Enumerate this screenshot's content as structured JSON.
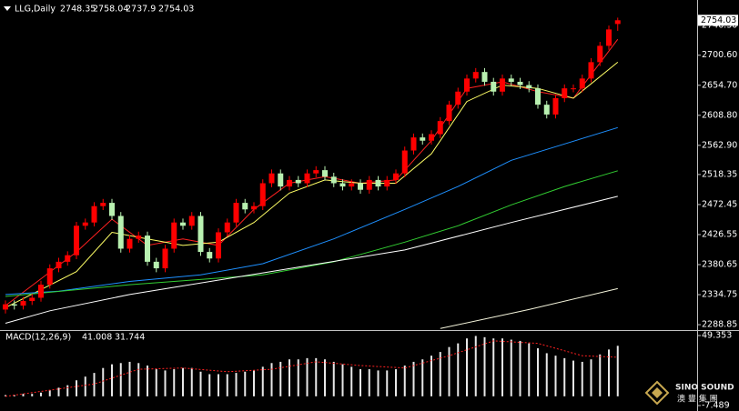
{
  "chart_data": [
    {
      "type": "candlestick",
      "symbol": "LLG,Daily",
      "up_color": "#ff0000",
      "down_color": "#b8f0b0",
      "open": [
        2312,
        2320,
        2318,
        2325,
        2330,
        2350,
        2375,
        2385,
        2395,
        2440,
        2445,
        2470,
        2475,
        2455,
        2405,
        2420,
        2425,
        2385,
        2375,
        2405,
        2445,
        2440,
        2455,
        2400,
        2390,
        2430,
        2445,
        2475,
        2465,
        2470,
        2505,
        2520,
        2500,
        2510,
        2505,
        2520,
        2525,
        2515,
        2505,
        2500,
        2505,
        2495,
        2510,
        2500,
        2510,
        2520,
        2555,
        2575,
        2570,
        2580,
        2600,
        2625,
        2645,
        2665,
        2675,
        2660,
        2645,
        2665,
        2660,
        2655,
        2650,
        2625,
        2610,
        2635,
        2650,
        2650,
        2665,
        2690,
        2715,
        2748.35
      ],
      "high": [
        2326,
        2326,
        2331,
        2336,
        2356,
        2381,
        2391,
        2401,
        2446,
        2451,
        2476,
        2481,
        2481,
        2461,
        2426,
        2431,
        2431,
        2391,
        2411,
        2451,
        2451,
        2461,
        2461,
        2406,
        2436,
        2451,
        2481,
        2481,
        2476,
        2511,
        2526,
        2526,
        2516,
        2516,
        2526,
        2531,
        2531,
        2521,
        2511,
        2511,
        2511,
        2516,
        2516,
        2516,
        2526,
        2561,
        2581,
        2581,
        2586,
        2606,
        2631,
        2651,
        2671,
        2681,
        2681,
        2666,
        2671,
        2671,
        2666,
        2661,
        2656,
        2631,
        2641,
        2656,
        2656,
        2671,
        2696,
        2721,
        2746,
        2758.04
      ],
      "low": [
        2306,
        2312,
        2312,
        2319,
        2324,
        2344,
        2369,
        2379,
        2389,
        2434,
        2439,
        2464,
        2449,
        2399,
        2399,
        2414,
        2379,
        2369,
        2369,
        2399,
        2434,
        2434,
        2394,
        2384,
        2384,
        2424,
        2439,
        2459,
        2459,
        2464,
        2499,
        2494,
        2494,
        2499,
        2499,
        2514,
        2509,
        2499,
        2494,
        2494,
        2489,
        2489,
        2494,
        2494,
        2504,
        2514,
        2549,
        2564,
        2564,
        2574,
        2594,
        2619,
        2639,
        2659,
        2654,
        2639,
        2639,
        2654,
        2649,
        2644,
        2619,
        2604,
        2604,
        2629,
        2644,
        2644,
        2659,
        2684,
        2709,
        2737.9
      ],
      "close": [
        2320,
        2318,
        2325,
        2330,
        2350,
        2375,
        2385,
        2395,
        2440,
        2445,
        2470,
        2475,
        2455,
        2405,
        2420,
        2425,
        2385,
        2375,
        2405,
        2445,
        2440,
        2455,
        2400,
        2390,
        2430,
        2445,
        2475,
        2465,
        2470,
        2505,
        2520,
        2500,
        2510,
        2505,
        2520,
        2525,
        2515,
        2505,
        2500,
        2505,
        2495,
        2510,
        2500,
        2510,
        2520,
        2555,
        2575,
        2570,
        2580,
        2600,
        2625,
        2645,
        2665,
        2675,
        2660,
        2645,
        2665,
        2660,
        2655,
        2650,
        2625,
        2610,
        2635,
        2650,
        2650,
        2665,
        2690,
        2715,
        2740,
        2754.03
      ],
      "lines": [
        {
          "color": "#ff2020",
          "x": [
            0,
            8,
            12,
            16,
            20,
            24,
            28,
            32,
            36,
            40,
            44,
            48,
            52,
            56,
            60,
            64,
            69
          ],
          "values": [
            2318,
            2400,
            2450,
            2410,
            2420,
            2410,
            2465,
            2505,
            2515,
            2505,
            2510,
            2570,
            2650,
            2660,
            2645,
            2635,
            2725
          ]
        },
        {
          "color": "#ffff66",
          "x": [
            0,
            8,
            12,
            16,
            20,
            24,
            28,
            32,
            36,
            40,
            44,
            48,
            52,
            56,
            60,
            64,
            69
          ],
          "values": [
            2315,
            2370,
            2430,
            2420,
            2410,
            2415,
            2445,
            2490,
            2510,
            2505,
            2505,
            2550,
            2630,
            2655,
            2650,
            2635,
            2690
          ]
        },
        {
          "color": "#1e90ff",
          "x": [
            0,
            6,
            14,
            22,
            29,
            37,
            45,
            51,
            57,
            63,
            69
          ],
          "values": [
            2335,
            2340,
            2355,
            2365,
            2382,
            2420,
            2465,
            2500,
            2540,
            2565,
            2590
          ]
        },
        {
          "color": "#32cd32",
          "x": [
            0,
            14,
            29,
            37,
            45,
            51,
            57,
            63,
            69
          ],
          "values": [
            2332,
            2350,
            2365,
            2385,
            2415,
            2440,
            2472,
            2500,
            2524
          ]
        },
        {
          "color": "#ffffff",
          "x": [
            0,
            5,
            14,
            29,
            45,
            57,
            69
          ],
          "values": [
            2291,
            2310,
            2335,
            2368,
            2403,
            2445,
            2485
          ]
        },
        {
          "color": "#f5f5dc",
          "x": [
            49,
            59,
            69
          ],
          "values": [
            2283,
            2312,
            2344
          ]
        }
      ],
      "ylim": [
        2282,
        2785
      ],
      "yticks": [
        {
          "value": 2746.3,
          "label": "2746.30"
        },
        {
          "value": 2700.6,
          "label": "2700.60"
        },
        {
          "value": 2654.7,
          "label": "2654.70"
        },
        {
          "value": 2608.8,
          "label": "2608.80"
        },
        {
          "value": 2562.9,
          "label": "2562.90"
        },
        {
          "value": 2518.35,
          "label": "2518.35"
        },
        {
          "value": 2472.45,
          "label": "2472.45"
        },
        {
          "value": 2426.55,
          "label": "2426.55"
        },
        {
          "value": 2380.65,
          "label": "2380.65"
        },
        {
          "value": 2334.75,
          "label": "2334.75"
        },
        {
          "value": 2288.85,
          "label": "2288.85"
        }
      ]
    },
    {
      "type": "macd",
      "title": "MACD(12,26,9)",
      "bar_color": "#e8e8e8",
      "signal_color": "#ff2020",
      "histogram": [
        1,
        1,
        2,
        2,
        3,
        5,
        7,
        9,
        13,
        16,
        19,
        23,
        26,
        27,
        28,
        27,
        25,
        22,
        21,
        22,
        23,
        23,
        20,
        18,
        18,
        18,
        19,
        20,
        21,
        24,
        27,
        28,
        30,
        30,
        31,
        31,
        30,
        28,
        26,
        24,
        22,
        22,
        21,
        21,
        22,
        25,
        28,
        30,
        33,
        36,
        40,
        43,
        47,
        49,
        48,
        47,
        47,
        46,
        45,
        43,
        39,
        35,
        33,
        31,
        29,
        28,
        30,
        34,
        38,
        41.008
      ],
      "signal_x": [
        0,
        10,
        15,
        20,
        25,
        30,
        35,
        40,
        45,
        50,
        55,
        60,
        65,
        69
      ],
      "signal": [
        0,
        10,
        22,
        23,
        20,
        22,
        28,
        25,
        23,
        33,
        45,
        43,
        33,
        31.744
      ],
      "ylim": [
        -7.489,
        49.353
      ],
      "yticks": [
        49.353,
        -7.489
      ]
    }
  ],
  "logo": {
    "text": "SINO SOUND",
    "subtext": "澳 豐 集 團"
  }
}
